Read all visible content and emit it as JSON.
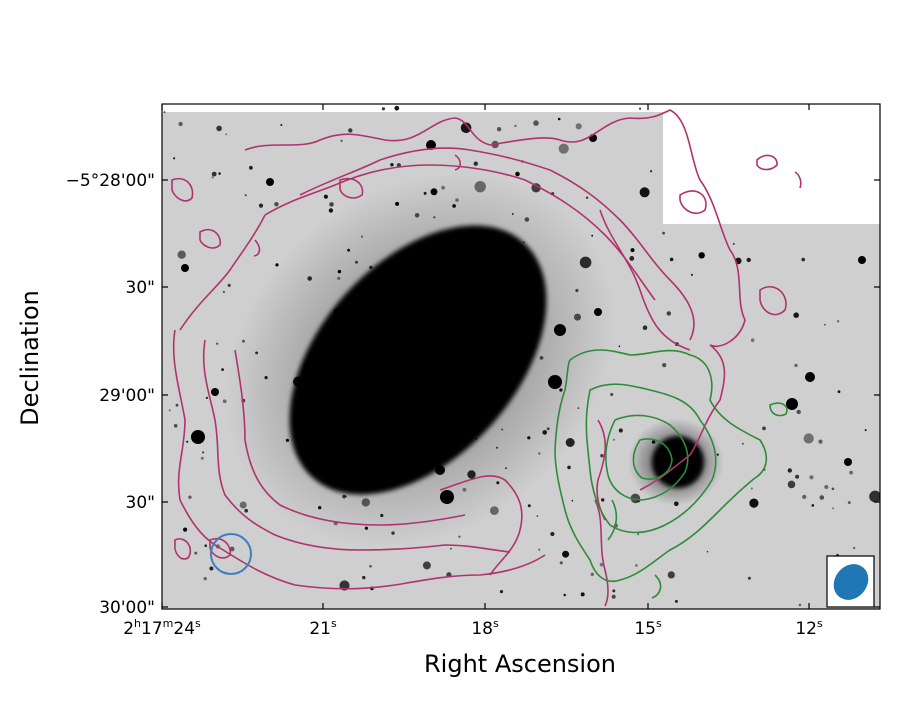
{
  "figure": {
    "xlabel": "Right Ascension",
    "ylabel": "Declination",
    "x_ticks": [
      {
        "label_main": "2",
        "sup1": "h",
        "mid1": "17",
        "sup2": "m",
        "mid2": "24",
        "sup3": "s"
      },
      {
        "label_main": "21",
        "sup1": "s"
      },
      {
        "label_main": "18",
        "sup1": "s"
      },
      {
        "label_main": "15",
        "sup1": "s"
      },
      {
        "label_main": "12",
        "sup1": "s"
      }
    ],
    "y_ticks": [
      "−5°28'00\"",
      "30\"",
      "29'00\"",
      "30\"",
      "30'00\""
    ],
    "colors": {
      "outer_contour": "#b0326e",
      "inner_contour": "#2e8b3a",
      "circle_marker": "#3a7fbf",
      "beam": "#1f77b4"
    },
    "icons": [
      "beam-ellipse-icon",
      "circle-marker-icon"
    ]
  }
}
